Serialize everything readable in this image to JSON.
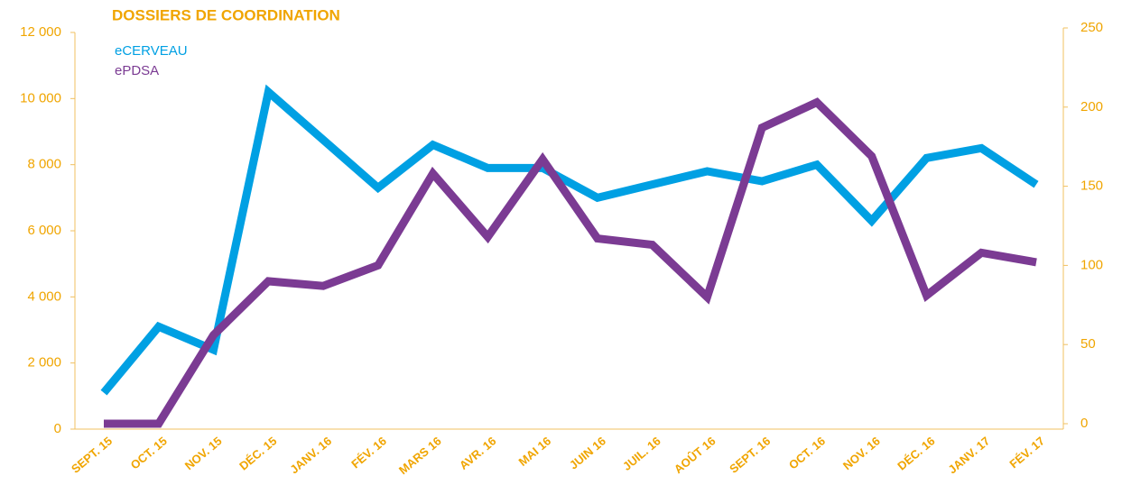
{
  "chart_data": {
    "type": "line",
    "title": "DOSSIERS DE COORDINATION",
    "categories": [
      "SEPT. 15",
      "OCT. 15",
      "NOV. 15",
      "DÉC. 15",
      "JANV. 16",
      "FÉV. 16",
      "MARS 16",
      "AVR. 16",
      "MAI 16",
      "JUIN 16",
      "JUIL. 16",
      "AOÛT 16",
      "SEPT. 16",
      "OCT. 16",
      "NOV. 16",
      "DÉC. 16",
      "JANV. 17",
      "FÉV. 17"
    ],
    "series": [
      {
        "name": "eCERVEAU",
        "color": "#00a0e3",
        "values": [
          1100,
          3100,
          2400,
          10200,
          8750,
          7300,
          8600,
          7900,
          7900,
          7000,
          7400,
          7800,
          7500,
          8000,
          6300,
          8200,
          8500,
          7400
        ]
      },
      {
        "name": "ePDSA",
        "color": "#7b3b93",
        "axis": "y2",
        "values": [
          0,
          0,
          56,
          90,
          87,
          100,
          158,
          118,
          167,
          117,
          113,
          80,
          187,
          203,
          169,
          81,
          108,
          102
        ]
      }
    ],
    "ylim": [
      0,
      12000
    ],
    "yticks": [
      0,
      {
        "value": 2000,
        "label": "2 000"
      },
      {
        "value": 4000,
        "label": "4 000"
      },
      {
        "value": 6000,
        "label": "6 000"
      },
      {
        "value": 8000,
        "label": "8 000"
      },
      {
        "value": 10000,
        "label": "10 000"
      },
      {
        "value": 12000,
        "label": "12 000"
      }
    ],
    "y2lim": [
      0,
      250
    ],
    "y2ticks": [
      0,
      50,
      100,
      150,
      200,
      250
    ]
  }
}
